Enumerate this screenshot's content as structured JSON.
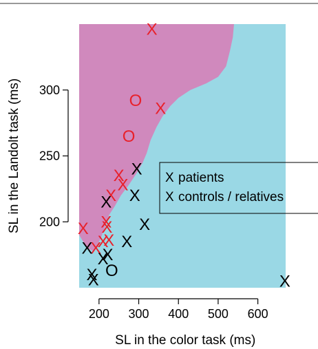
{
  "chart_data": {
    "type": "scatter",
    "xlabel": "SL in the color task (ms)",
    "ylabel": "SL in the Landolt task (ms)",
    "xlim": [
      150,
      670
    ],
    "ylim": [
      150,
      350
    ],
    "xticks": [
      200,
      300,
      400,
      500,
      600
    ],
    "yticks": [
      200,
      250,
      300
    ],
    "colors": {
      "patients": "#e8212b",
      "controls": "#000000",
      "region_patient": "#d089bd",
      "region_control": "#9ad8e5"
    },
    "region_boundary": [
      [
        150,
        190
      ],
      [
        170,
        180
      ],
      [
        185,
        178
      ],
      [
        195,
        182
      ],
      [
        205,
        188
      ],
      [
        215,
        196
      ],
      [
        225,
        205
      ],
      [
        240,
        212
      ],
      [
        255,
        220
      ],
      [
        275,
        228
      ],
      [
        295,
        237
      ],
      [
        310,
        245
      ],
      [
        320,
        252
      ],
      [
        330,
        262
      ],
      [
        345,
        272
      ],
      [
        360,
        280
      ],
      [
        380,
        288
      ],
      [
        400,
        294
      ],
      [
        430,
        300
      ],
      [
        470,
        305
      ],
      [
        500,
        310
      ],
      [
        520,
        318
      ],
      [
        530,
        330
      ],
      [
        537,
        340
      ],
      [
        540,
        350
      ]
    ],
    "series": [
      {
        "name": "patients",
        "marker": "X",
        "points": [
          [
            333,
            346
          ],
          [
            355,
            286
          ],
          [
            160,
            195
          ],
          [
            192,
            180
          ],
          [
            210,
            185
          ],
          [
            218,
            200
          ],
          [
            220,
            196
          ],
          [
            225,
            186
          ],
          [
            230,
            220
          ],
          [
            250,
            235
          ],
          [
            260,
            228
          ]
        ]
      },
      {
        "name": "patients (O)",
        "marker": "O",
        "points": [
          [
            292,
            292
          ],
          [
            275,
            265
          ]
        ]
      },
      {
        "name": "controls / relatives",
        "marker": "X",
        "points": [
          [
            170,
            180
          ],
          [
            182,
            160
          ],
          [
            186,
            156
          ],
          [
            210,
            172
          ],
          [
            218,
            215
          ],
          [
            222,
            175
          ],
          [
            270,
            185
          ],
          [
            290,
            220
          ],
          [
            295,
            240
          ],
          [
            315,
            198
          ],
          [
            668,
            155
          ]
        ]
      },
      {
        "name": "controls (O)",
        "marker": "O",
        "points": [
          [
            232,
            163
          ]
        ]
      }
    ],
    "legend": {
      "placement": "right",
      "entries": [
        {
          "marker": "X",
          "label": "patients",
          "color": "#e8212b"
        },
        {
          "marker": "X",
          "label": "controls / relatives",
          "color": "#000000"
        }
      ]
    }
  }
}
